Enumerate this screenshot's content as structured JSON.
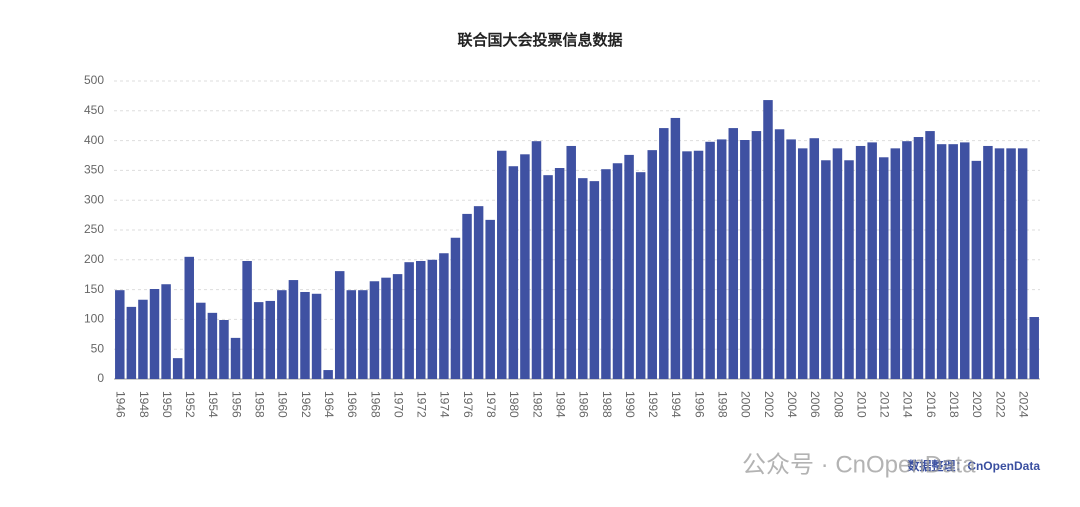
{
  "chart_data": {
    "type": "bar",
    "title": "联合国大会投票信息数据",
    "categories": [
      "1946",
      null,
      "1948",
      null,
      "1950",
      null,
      "1952",
      null,
      "1954",
      null,
      "1956",
      null,
      "1958",
      null,
      "1960",
      null,
      "1962",
      null,
      "1964",
      null,
      "1966",
      null,
      "1968",
      null,
      "1970",
      null,
      "1972",
      null,
      "1974",
      null,
      "1976",
      null,
      "1978",
      null,
      "1980",
      null,
      "1982",
      null,
      "1984",
      null,
      "1986",
      null,
      "1988",
      null,
      "1990",
      null,
      "1992",
      null,
      "1994",
      null,
      "1996",
      null,
      "1998",
      null,
      "2000",
      null,
      "2002",
      null,
      "2004",
      null,
      "2006",
      null,
      "2008",
      null,
      "2010",
      null,
      "2012",
      null,
      "2014",
      null,
      "2016",
      null,
      "2018",
      null,
      "2020",
      null,
      "2022",
      null,
      "2024",
      null
    ],
    "values": [
      149,
      121,
      133,
      151,
      159,
      35,
      205,
      128,
      111,
      99,
      69,
      198,
      129,
      131,
      149,
      166,
      146,
      143,
      15,
      181,
      149,
      149,
      164,
      170,
      176,
      196,
      198,
      200,
      211,
      237,
      277,
      290,
      267,
      383,
      357,
      377,
      399,
      342,
      354,
      391,
      337,
      332,
      352,
      362,
      376,
      347,
      384,
      421,
      438,
      382,
      383,
      398,
      402,
      421,
      401,
      416,
      468,
      419,
      402,
      387,
      404,
      367,
      387,
      367,
      391,
      397,
      372,
      387,
      399,
      406,
      416,
      394,
      394,
      397,
      366,
      391,
      387,
      387,
      387,
      104
    ],
    "color": "#3f51a2",
    "ylim": [
      0,
      500
    ],
    "yticks": [
      0,
      50,
      100,
      150,
      200,
      250,
      300,
      350,
      400,
      450,
      500
    ],
    "grid": true,
    "source": "数据整理：CnOpenData",
    "watermark": "公众号 · CnOpenData"
  }
}
